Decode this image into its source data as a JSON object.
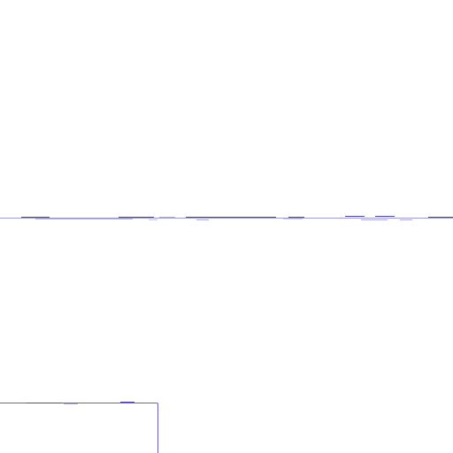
{
  "colors": {
    "background": "#ffffff",
    "line": "#4b45b8"
  }
}
